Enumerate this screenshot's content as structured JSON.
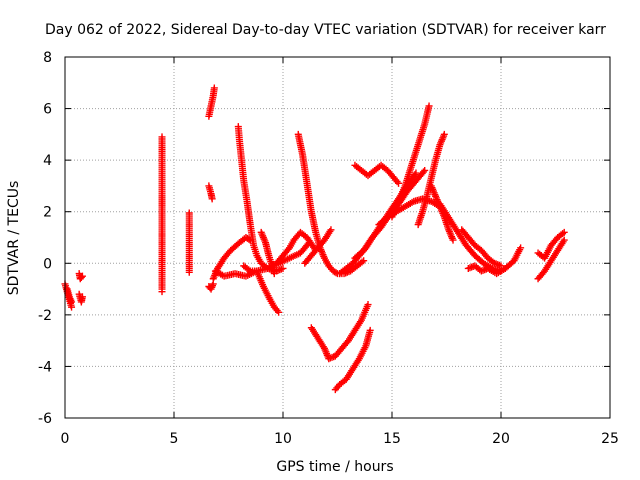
{
  "chart_data": {
    "type": "scatter",
    "title": "Day 062 of 2022, Sidereal Day-to-day VTEC variation (SDTVAR) for receiver karr",
    "xlabel": "GPS time / hours",
    "ylabel": "SDTVAR / TECUs",
    "xlim": [
      0,
      25
    ],
    "ylim": [
      -6,
      8
    ],
    "xticks": [
      0,
      5,
      10,
      15,
      20,
      25
    ],
    "yticks": [
      -6,
      -4,
      -2,
      0,
      2,
      4,
      6,
      8
    ],
    "grid": true,
    "marker": "+",
    "series_color": "#ff0000",
    "series": [
      {
        "name": "t1",
        "x": [
          0.0,
          0.1,
          0.2,
          0.3
        ],
        "y": [
          -0.8,
          -1.1,
          -1.4,
          -1.7
        ]
      },
      {
        "name": "t2",
        "x": [
          0.1,
          0.2,
          0.3
        ],
        "y": [
          -1.0,
          -1.3,
          -1.5
        ]
      },
      {
        "name": "t3",
        "x": [
          0.65,
          0.7,
          0.8
        ],
        "y": [
          -0.4,
          -0.6,
          -0.5
        ]
      },
      {
        "name": "t4",
        "x": [
          0.65,
          0.75,
          0.8
        ],
        "y": [
          -1.2,
          -1.5,
          -1.3
        ]
      },
      {
        "name": "t5",
        "x": [
          4.45,
          4.45,
          4.45,
          4.45,
          4.45,
          4.45
        ],
        "y": [
          4.9,
          4.5,
          1.25,
          -0.05,
          -1.0,
          -1.1
        ]
      },
      {
        "name": "t6",
        "x": [
          5.7,
          5.7
        ],
        "y": [
          1.95,
          -0.35
        ]
      },
      {
        "name": "t7",
        "x": [
          6.6,
          6.7,
          6.8,
          6.85
        ],
        "y": [
          5.7,
          6.1,
          6.5,
          6.8
        ]
      },
      {
        "name": "t8",
        "x": [
          6.6,
          6.7,
          6.75
        ],
        "y": [
          3.0,
          2.7,
          2.5
        ]
      },
      {
        "name": "t9",
        "x": [
          6.6,
          6.7,
          6.8
        ],
        "y": [
          -0.9,
          -1.0,
          -0.8
        ]
      },
      {
        "name": "t10",
        "x": [
          6.8,
          7.0,
          7.3,
          7.6,
          8.0,
          8.3,
          8.5
        ],
        "y": [
          -0.6,
          -0.2,
          0.2,
          0.5,
          0.8,
          1.0,
          0.9
        ]
      },
      {
        "name": "t11",
        "x": [
          6.9,
          7.3,
          7.8,
          8.3,
          8.8,
          9.3,
          9.8,
          10.3,
          10.8,
          11.2
        ],
        "y": [
          -0.3,
          -0.5,
          -0.4,
          -0.5,
          -0.3,
          -0.2,
          0.0,
          0.2,
          0.4,
          0.8
        ]
      },
      {
        "name": "t12",
        "x": [
          7.95,
          8.0,
          8.1,
          8.2,
          8.35,
          8.5,
          8.65,
          8.8,
          9.0,
          9.3,
          9.7,
          10.0
        ],
        "y": [
          5.3,
          4.8,
          4.0,
          3.2,
          2.4,
          1.5,
          0.7,
          0.3,
          0.0,
          -0.2,
          -0.3,
          -0.2
        ]
      },
      {
        "name": "t13",
        "x": [
          8.2,
          8.5,
          8.8,
          9.1,
          9.4,
          9.6,
          9.8
        ],
        "y": [
          -0.1,
          -0.3,
          -0.3,
          -0.9,
          -1.4,
          -1.7,
          -1.9
        ]
      },
      {
        "name": "t14",
        "x": [
          9.0,
          9.2,
          9.35,
          9.5,
          9.6
        ],
        "y": [
          1.2,
          0.8,
          0.3,
          -0.1,
          -0.4
        ]
      },
      {
        "name": "t15",
        "x": [
          9.7,
          10.0,
          10.3,
          10.5,
          10.8,
          11.1,
          11.5
        ],
        "y": [
          0.0,
          0.3,
          0.6,
          0.9,
          1.2,
          1.0,
          0.5
        ]
      },
      {
        "name": "t16",
        "x": [
          10.7,
          10.9,
          11.1,
          11.3,
          11.5,
          11.7,
          11.9,
          12.1,
          12.3,
          12.5,
          12.8,
          13.1,
          13.4,
          13.7
        ],
        "y": [
          5.0,
          4.2,
          3.1,
          2.0,
          1.2,
          0.6,
          0.2,
          -0.1,
          -0.3,
          -0.4,
          -0.4,
          -0.3,
          -0.1,
          0.1
        ]
      },
      {
        "name": "t17",
        "x": [
          11.0,
          11.3,
          11.6,
          11.9,
          12.2
        ],
        "y": [
          0.0,
          0.3,
          0.6,
          0.9,
          1.3
        ]
      },
      {
        "name": "t18",
        "x": [
          11.3,
          11.6,
          11.9,
          12.1,
          12.4,
          12.7,
          13.0,
          13.3,
          13.6,
          13.9
        ],
        "y": [
          -2.5,
          -2.9,
          -3.3,
          -3.7,
          -3.6,
          -3.3,
          -3.0,
          -2.6,
          -2.2,
          -1.6
        ]
      },
      {
        "name": "t19",
        "x": [
          12.4,
          12.6,
          12.9,
          13.2,
          13.5,
          13.8,
          14.0
        ],
        "y": [
          -4.9,
          -4.7,
          -4.5,
          -4.1,
          -3.7,
          -3.2,
          -2.6
        ]
      },
      {
        "name": "t20",
        "x": [
          12.6,
          12.9,
          13.2,
          13.5,
          13.8,
          14.1,
          14.5,
          14.9,
          15.3,
          15.7,
          16.1,
          16.5
        ],
        "y": [
          -0.4,
          -0.2,
          0.0,
          0.3,
          0.6,
          1.0,
          1.4,
          1.9,
          2.3,
          2.8,
          3.2,
          3.6
        ]
      },
      {
        "name": "t21",
        "x": [
          13.3,
          13.7,
          14.1,
          14.5,
          14.9,
          15.3,
          15.7,
          16.1
        ],
        "y": [
          0.2,
          0.5,
          1.0,
          1.5,
          2.0,
          2.5,
          3.0,
          3.5
        ]
      },
      {
        "name": "t22",
        "x": [
          13.3,
          13.6,
          13.9,
          14.2,
          14.5,
          14.8,
          15.1,
          15.3
        ],
        "y": [
          3.8,
          3.6,
          3.4,
          3.6,
          3.8,
          3.6,
          3.3,
          3.1
        ]
      },
      {
        "name": "t23",
        "x": [
          14.4,
          14.8,
          15.2,
          15.6,
          16.0,
          16.4,
          16.8,
          17.2
        ],
        "y": [
          1.5,
          1.8,
          2.0,
          2.2,
          2.4,
          2.5,
          2.4,
          2.2
        ]
      },
      {
        "name": "t24",
        "x": [
          15.0,
          15.3,
          15.6,
          15.9,
          16.2,
          16.5,
          16.7
        ],
        "y": [
          1.8,
          2.4,
          3.0,
          3.8,
          4.6,
          5.4,
          6.1
        ]
      },
      {
        "name": "t25",
        "x": [
          16.2,
          16.4,
          16.6,
          16.8,
          17.0,
          17.2,
          17.4
        ],
        "y": [
          1.5,
          2.0,
          2.6,
          3.3,
          4.0,
          4.6,
          5.0
        ]
      },
      {
        "name": "t26",
        "x": [
          16.8,
          17.0,
          17.2,
          17.4,
          17.6,
          17.8
        ],
        "y": [
          3.0,
          2.6,
          2.2,
          1.8,
          1.3,
          0.9
        ]
      },
      {
        "name": "t27",
        "x": [
          17.2,
          17.5,
          17.8,
          18.1,
          18.4,
          18.8,
          19.2,
          19.6,
          20.0
        ],
        "y": [
          2.3,
          1.9,
          1.5,
          1.1,
          0.7,
          0.3,
          0.0,
          -0.2,
          -0.3
        ]
      },
      {
        "name": "t28",
        "x": [
          18.2,
          18.5,
          18.8,
          19.1,
          19.4,
          19.7,
          20.0
        ],
        "y": [
          1.3,
          1.0,
          0.7,
          0.5,
          0.2,
          0.0,
          -0.1
        ]
      },
      {
        "name": "t29",
        "x": [
          18.5,
          18.8,
          19.1,
          19.4,
          19.8,
          20.2,
          20.6,
          20.9
        ],
        "y": [
          -0.2,
          -0.1,
          -0.3,
          -0.2,
          -0.4,
          -0.2,
          0.1,
          0.6
        ]
      },
      {
        "name": "t30",
        "x": [
          21.7,
          22.0,
          22.3,
          22.6,
          22.9
        ],
        "y": [
          -0.6,
          -0.3,
          0.1,
          0.5,
          0.9
        ]
      },
      {
        "name": "t31",
        "x": [
          21.7,
          22.0,
          22.3,
          22.6,
          22.9
        ],
        "y": [
          0.4,
          0.2,
          0.7,
          1.0,
          1.2
        ]
      }
    ]
  }
}
